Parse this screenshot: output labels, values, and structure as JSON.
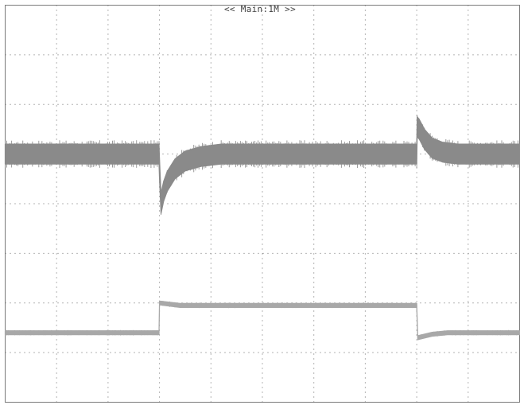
{
  "chart_data": {
    "type": "line",
    "title": "<< Main:1M >>",
    "xlabel": "",
    "ylabel": "",
    "grid": true,
    "divisions": {
      "x": 10,
      "y": 8
    },
    "xlim": [
      0,
      10
    ],
    "ylim": [
      -4,
      4
    ],
    "series": [
      {
        "color": "#8a8a8a",
        "noise_band_div": 0.4,
        "points": [
          [
            0.0,
            1.0
          ],
          [
            2.99,
            1.0
          ],
          [
            3.0,
            0.7
          ],
          [
            3.03,
            0.0
          ],
          [
            3.08,
            0.25
          ],
          [
            3.15,
            0.45
          ],
          [
            3.3,
            0.7
          ],
          [
            3.5,
            0.86
          ],
          [
            3.8,
            0.95
          ],
          [
            4.2,
            1.0
          ],
          [
            8.0,
            1.0
          ],
          [
            8.01,
            1.55
          ],
          [
            8.05,
            1.5
          ],
          [
            8.15,
            1.3
          ],
          [
            8.3,
            1.12
          ],
          [
            8.5,
            1.04
          ],
          [
            8.8,
            1.0
          ],
          [
            10.0,
            1.0
          ]
        ]
      },
      {
        "color": "#a8a8a8",
        "noise_band_div": 0.08,
        "points": [
          [
            0.0,
            -2.6
          ],
          [
            2.99,
            -2.6
          ],
          [
            3.0,
            -2.0
          ],
          [
            3.4,
            -2.05
          ],
          [
            5.0,
            -2.05
          ],
          [
            8.0,
            -2.05
          ],
          [
            8.02,
            -2.7
          ],
          [
            8.3,
            -2.63
          ],
          [
            8.6,
            -2.6
          ],
          [
            10.0,
            -2.6
          ]
        ]
      }
    ]
  }
}
